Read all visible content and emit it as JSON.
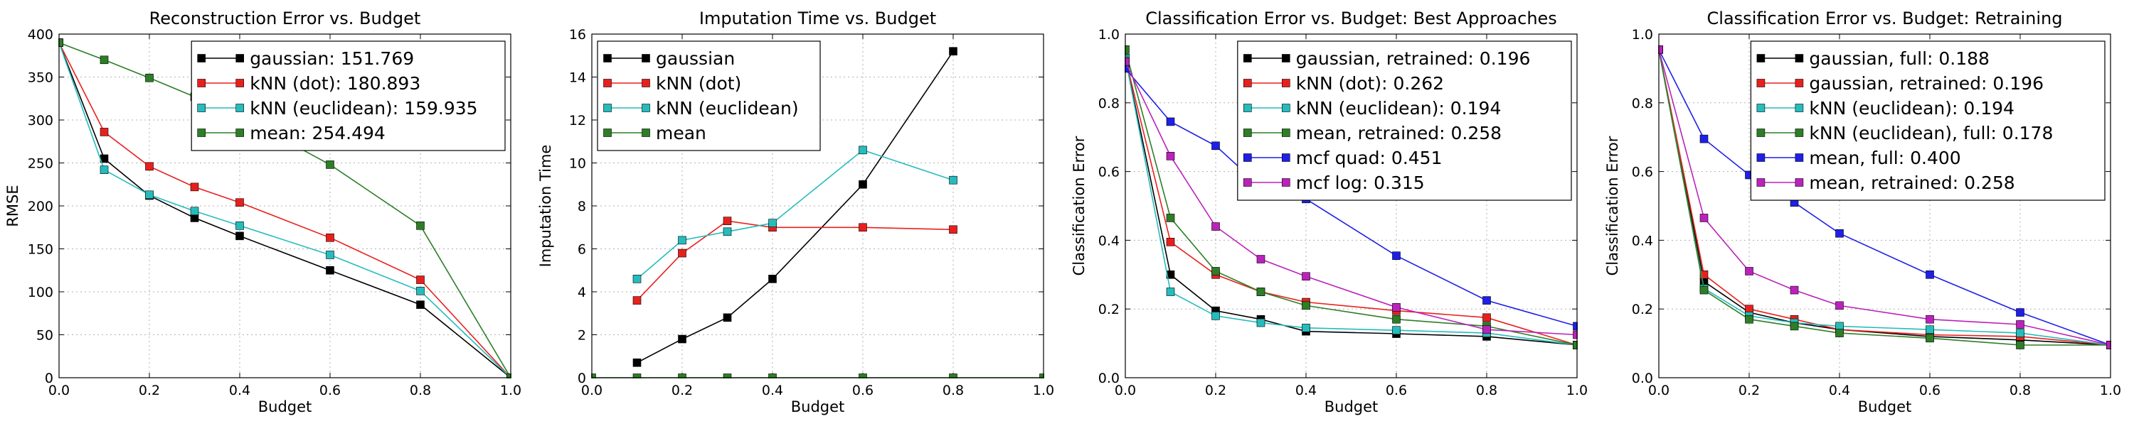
{
  "chart_data": [
    {
      "type": "line",
      "title": "Reconstruction Error vs. Budget",
      "xlabel": "Budget",
      "ylabel": "RMSE",
      "xlim": [
        0,
        1
      ],
      "ylim": [
        0,
        400
      ],
      "xticks": [
        "0.0",
        "0.2",
        "0.4",
        "0.6",
        "0.8",
        "1.0"
      ],
      "yticks": [
        "0",
        "50",
        "100",
        "150",
        "200",
        "250",
        "300",
        "350",
        "400"
      ],
      "grid": true,
      "legend_position": "top-right",
      "series": [
        {
          "name": "gaussian: 151.769",
          "color": "#000000",
          "x": [
            0,
            0.1,
            0.2,
            0.3,
            0.4,
            0.6,
            0.8,
            1.0
          ],
          "y": [
            390,
            255,
            212,
            186,
            165,
            125,
            85,
            0
          ]
        },
        {
          "name": "kNN (dot): 180.893",
          "color": "#e8201d",
          "x": [
            0,
            0.1,
            0.2,
            0.3,
            0.4,
            0.6,
            0.8,
            1.0
          ],
          "y": [
            390,
            286,
            246,
            222,
            204,
            163,
            114,
            0
          ]
        },
        {
          "name": "kNN (euclidean): 159.935",
          "color": "#26bcbc",
          "x": [
            0,
            0.1,
            0.2,
            0.3,
            0.4,
            0.6,
            0.8,
            1.0
          ],
          "y": [
            390,
            242,
            213,
            194,
            177,
            143,
            101,
            0
          ]
        },
        {
          "name": "mean: 254.494",
          "color": "#2d7e26",
          "x": [
            0,
            0.1,
            0.2,
            0.3,
            0.4,
            0.6,
            0.8,
            1.0
          ],
          "y": [
            390,
            370,
            349,
            327,
            305,
            248,
            177,
            0
          ]
        }
      ]
    },
    {
      "type": "line",
      "title": "Imputation Time vs. Budget",
      "xlabel": "Budget",
      "ylabel": "Imputation Time",
      "xlim": [
        0,
        1
      ],
      "ylim": [
        0,
        16
      ],
      "xticks": [
        "0.0",
        "0.2",
        "0.4",
        "0.6",
        "0.8",
        "1.0"
      ],
      "yticks": [
        "0",
        "2",
        "4",
        "6",
        "8",
        "10",
        "12",
        "14",
        "16"
      ],
      "grid": true,
      "legend_position": "top-left",
      "series": [
        {
          "name": "gaussian",
          "color": "#000000",
          "x": [
            0.1,
            0.2,
            0.3,
            0.4,
            0.6,
            0.8
          ],
          "y": [
            0.7,
            1.8,
            2.8,
            4.6,
            9.0,
            15.2
          ]
        },
        {
          "name": "kNN (dot)",
          "color": "#e8201d",
          "x": [
            0.1,
            0.2,
            0.3,
            0.4,
            0.6,
            0.8
          ],
          "y": [
            3.6,
            5.8,
            7.3,
            7.0,
            7.0,
            6.9
          ]
        },
        {
          "name": "kNN (euclidean)",
          "color": "#26bcbc",
          "x": [
            0.1,
            0.2,
            0.3,
            0.4,
            0.6,
            0.8
          ],
          "y": [
            4.6,
            6.4,
            6.8,
            7.2,
            10.6,
            9.2
          ]
        },
        {
          "name": "mean",
          "color": "#2d7e26",
          "x": [
            0,
            0.1,
            0.2,
            0.3,
            0.4,
            0.6,
            0.8,
            1.0
          ],
          "y": [
            0,
            0,
            0,
            0,
            0,
            0,
            0,
            0
          ]
        }
      ]
    },
    {
      "type": "line",
      "title": "Classification Error vs. Budget: Best Approaches",
      "xlabel": "Budget",
      "ylabel": "Classification Error",
      "xlim": [
        0,
        1
      ],
      "ylim": [
        0,
        1
      ],
      "xticks": [
        "0.0",
        "0.2",
        "0.4",
        "0.6",
        "0.8",
        "1.0"
      ],
      "yticks": [
        "0.0",
        "0.2",
        "0.4",
        "0.6",
        "0.8",
        "1.0"
      ],
      "grid": true,
      "legend_position": "top-right",
      "series": [
        {
          "name": "gaussian, retrained: 0.196",
          "color": "#000000",
          "x": [
            0,
            0.1,
            0.2,
            0.3,
            0.4,
            0.6,
            0.8,
            1.0
          ],
          "y": [
            0.93,
            0.3,
            0.195,
            0.17,
            0.135,
            0.128,
            0.12,
            0.095
          ]
        },
        {
          "name": "kNN (dot): 0.262",
          "color": "#e8201d",
          "x": [
            0,
            0.1,
            0.2,
            0.3,
            0.4,
            0.6,
            0.8,
            1.0
          ],
          "y": [
            0.93,
            0.395,
            0.3,
            0.25,
            0.22,
            0.195,
            0.175,
            0.095
          ]
        },
        {
          "name": "kNN (euclidean): 0.194",
          "color": "#26bcbc",
          "x": [
            0,
            0.1,
            0.2,
            0.3,
            0.4,
            0.6,
            0.8,
            1.0
          ],
          "y": [
            0.93,
            0.25,
            0.18,
            0.16,
            0.145,
            0.138,
            0.13,
            0.095
          ]
        },
        {
          "name": "mean, retrained: 0.258",
          "color": "#2d7e26",
          "x": [
            0,
            0.1,
            0.2,
            0.3,
            0.4,
            0.6,
            0.8,
            1.0
          ],
          "y": [
            0.955,
            0.465,
            0.31,
            0.25,
            0.21,
            0.17,
            0.15,
            0.095
          ]
        },
        {
          "name": "mcf quad: 0.451",
          "color": "#1f1fe8",
          "x": [
            0,
            0.1,
            0.2,
            0.3,
            0.4,
            0.6,
            0.8,
            1.0
          ],
          "y": [
            0.9,
            0.745,
            0.675,
            0.555,
            0.52,
            0.355,
            0.225,
            0.15
          ]
        },
        {
          "name": "mcf log: 0.315",
          "color": "#bb22bb",
          "x": [
            0,
            0.1,
            0.2,
            0.3,
            0.4,
            0.6,
            0.8,
            1.0
          ],
          "y": [
            0.92,
            0.645,
            0.44,
            0.345,
            0.295,
            0.205,
            0.14,
            0.125
          ]
        }
      ]
    },
    {
      "type": "line",
      "title": "Classification Error vs. Budget: Retraining",
      "xlabel": "Budget",
      "ylabel": "Classification Error",
      "xlim": [
        0,
        1
      ],
      "ylim": [
        0,
        1
      ],
      "xticks": [
        "0.0",
        "0.2",
        "0.4",
        "0.6",
        "0.8",
        "1.0"
      ],
      "yticks": [
        "0.0",
        "0.2",
        "0.4",
        "0.6",
        "0.8",
        "1.0"
      ],
      "grid": true,
      "legend_position": "top-right",
      "series": [
        {
          "name": "gaussian, full: 0.188",
          "color": "#000000",
          "x": [
            0,
            0.1,
            0.2,
            0.3,
            0.4,
            0.6,
            0.8,
            1.0
          ],
          "y": [
            0.955,
            0.28,
            0.19,
            0.16,
            0.14,
            0.12,
            0.11,
            0.095
          ]
        },
        {
          "name": "gaussian, retrained: 0.196",
          "color": "#e8201d",
          "x": [
            0,
            0.1,
            0.2,
            0.3,
            0.4,
            0.6,
            0.8,
            1.0
          ],
          "y": [
            0.955,
            0.3,
            0.2,
            0.17,
            0.14,
            0.125,
            0.12,
            0.095
          ]
        },
        {
          "name": "kNN (euclidean): 0.194",
          "color": "#26bcbc",
          "x": [
            0,
            0.1,
            0.2,
            0.3,
            0.4,
            0.6,
            0.8,
            1.0
          ],
          "y": [
            0.955,
            0.26,
            0.18,
            0.16,
            0.15,
            0.14,
            0.13,
            0.095
          ]
        },
        {
          "name": "kNN (euclidean), full: 0.178",
          "color": "#2d7e26",
          "x": [
            0,
            0.1,
            0.2,
            0.3,
            0.4,
            0.6,
            0.8,
            1.0
          ],
          "y": [
            0.955,
            0.255,
            0.17,
            0.15,
            0.13,
            0.115,
            0.095,
            0.095
          ]
        },
        {
          "name": "mean, full: 0.400",
          "color": "#1f1fe8",
          "x": [
            0,
            0.1,
            0.2,
            0.3,
            0.4,
            0.6,
            0.8,
            1.0
          ],
          "y": [
            0.955,
            0.695,
            0.59,
            0.51,
            0.42,
            0.3,
            0.19,
            0.095
          ]
        },
        {
          "name": "mean, retrained: 0.258",
          "color": "#bb22bb",
          "x": [
            0,
            0.1,
            0.2,
            0.3,
            0.4,
            0.6,
            0.8,
            1.0
          ],
          "y": [
            0.955,
            0.465,
            0.31,
            0.255,
            0.21,
            0.17,
            0.155,
            0.095
          ]
        }
      ]
    }
  ]
}
